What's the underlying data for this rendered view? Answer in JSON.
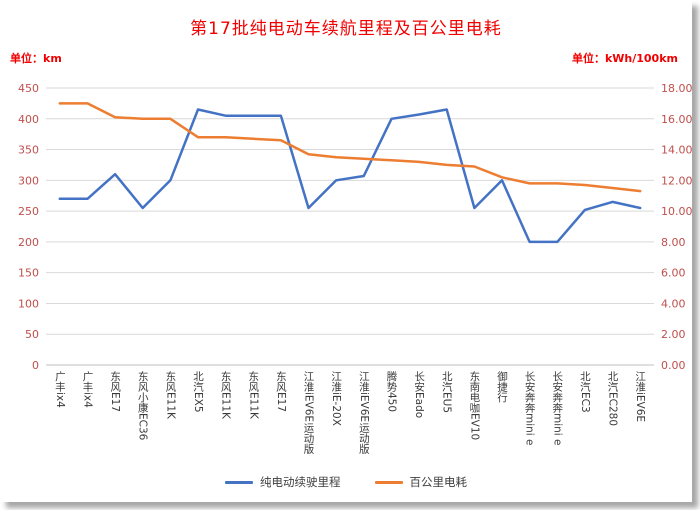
{
  "chart_data": {
    "type": "line",
    "title": "第17批纯电动车续航里程及百公里电耗",
    "legend_position": "bottom",
    "grid": true,
    "categories": [
      "广丰ix4",
      "广丰ix4",
      "东风E17",
      "东风小康EC36",
      "东风E11K",
      "北汽EX5",
      "东风E11K",
      "东风E11K",
      "东风E17",
      "江淮iEV6E运动版",
      "江淮iE-20X",
      "江淮iEV6E运动版",
      "腾势450",
      "长安Eado",
      "北汽EU5",
      "东南电咖EV10",
      "御捷行",
      "长安奔奔mini e",
      "长安奔奔mini e",
      "北汽EC3",
      "北汽EC280",
      "江淮iEV6E"
    ],
    "series": [
      {
        "name": "纯电动续驶里程",
        "axis": "left",
        "color": "#4472c4",
        "values": [
          270,
          270,
          310,
          255,
          300,
          415,
          405,
          405,
          405,
          255,
          300,
          307,
          400,
          407,
          415,
          255,
          300,
          200,
          200,
          252,
          265,
          255
        ]
      },
      {
        "name": "百公里电耗",
        "axis": "right",
        "color": "#ed7d31",
        "values": [
          17.0,
          17.0,
          16.1,
          16.0,
          16.0,
          14.8,
          14.8,
          14.7,
          14.6,
          13.7,
          13.5,
          13.4,
          13.3,
          13.2,
          13.0,
          12.9,
          12.2,
          11.8,
          11.8,
          11.7,
          11.5,
          11.3
        ]
      }
    ],
    "left_axis": {
      "unit": "单位：km",
      "min": 0,
      "max": 450,
      "step": 50,
      "ticks": [
        "450",
        "400",
        "350",
        "300",
        "250",
        "200",
        "150",
        "100",
        "50",
        "0"
      ]
    },
    "right_axis": {
      "unit": "单位：kWh/100km",
      "min": 0,
      "max": 18,
      "step": 2,
      "ticks": [
        "18.00",
        "16.00",
        "14.00",
        "12.00",
        "10.00",
        "8.00",
        "6.00",
        "4.00",
        "2.00",
        "0.00"
      ]
    }
  }
}
